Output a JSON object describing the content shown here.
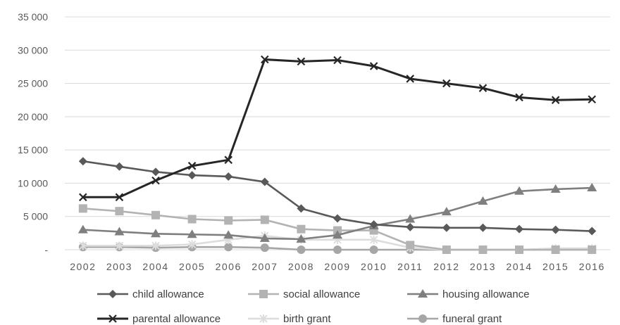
{
  "chart_data": {
    "type": "line",
    "title": "",
    "xlabel": "",
    "ylabel": "",
    "x": [
      "2002",
      "2003",
      "2004",
      "2005",
      "2006",
      "2007",
      "2008",
      "2009",
      "2010",
      "2011",
      "2012",
      "2013",
      "2014",
      "2015",
      "2016"
    ],
    "ylim": [
      0,
      35000
    ],
    "yticks": [
      0,
      5000,
      10000,
      15000,
      20000,
      25000,
      30000,
      35000
    ],
    "ytick_labels": [
      "-",
      "5 000",
      "10 000",
      "15 000",
      "20 000",
      "25 000",
      "30 000",
      "35 000"
    ],
    "grid": true,
    "legend_position": "bottom",
    "series": [
      {
        "name": "child allowance",
        "color": "#595959",
        "marker": "diamond",
        "values": [
          13300,
          12500,
          11700,
          11200,
          11000,
          10200,
          6200,
          4700,
          3800,
          3400,
          3300,
          3300,
          3100,
          3000,
          2800
        ]
      },
      {
        "name": "social allowance",
        "color": "#b3b3b3",
        "marker": "square",
        "values": [
          6200,
          5800,
          5200,
          4600,
          4400,
          4500,
          3100,
          2900,
          2900,
          700,
          0,
          0,
          0,
          0,
          0
        ]
      },
      {
        "name": "housing allowance",
        "color": "#7f7f7f",
        "marker": "triangle",
        "values": [
          3000,
          2700,
          2400,
          2300,
          2200,
          1700,
          1600,
          2200,
          3600,
          4600,
          5700,
          7300,
          8800,
          9100,
          9300
        ]
      },
      {
        "name": "parental allowance",
        "color": "#262626",
        "marker": "x",
        "values": [
          7900,
          7900,
          10400,
          12600,
          13500,
          28600,
          28300,
          28500,
          27600,
          25700,
          25000,
          24300,
          22900,
          22500,
          22600
        ]
      },
      {
        "name": "birth grant",
        "color": "#dddddd",
        "marker": "star",
        "values": [
          600,
          600,
          600,
          800,
          1500,
          2100,
          1500,
          1500,
          1500,
          300,
          0,
          0,
          0,
          200,
          200
        ]
      },
      {
        "name": "funeral grant",
        "color": "#a6a6a6",
        "marker": "circle",
        "values": [
          400,
          400,
          300,
          400,
          400,
          300,
          0,
          0,
          0,
          0,
          0,
          0,
          0,
          0,
          0
        ]
      }
    ]
  }
}
